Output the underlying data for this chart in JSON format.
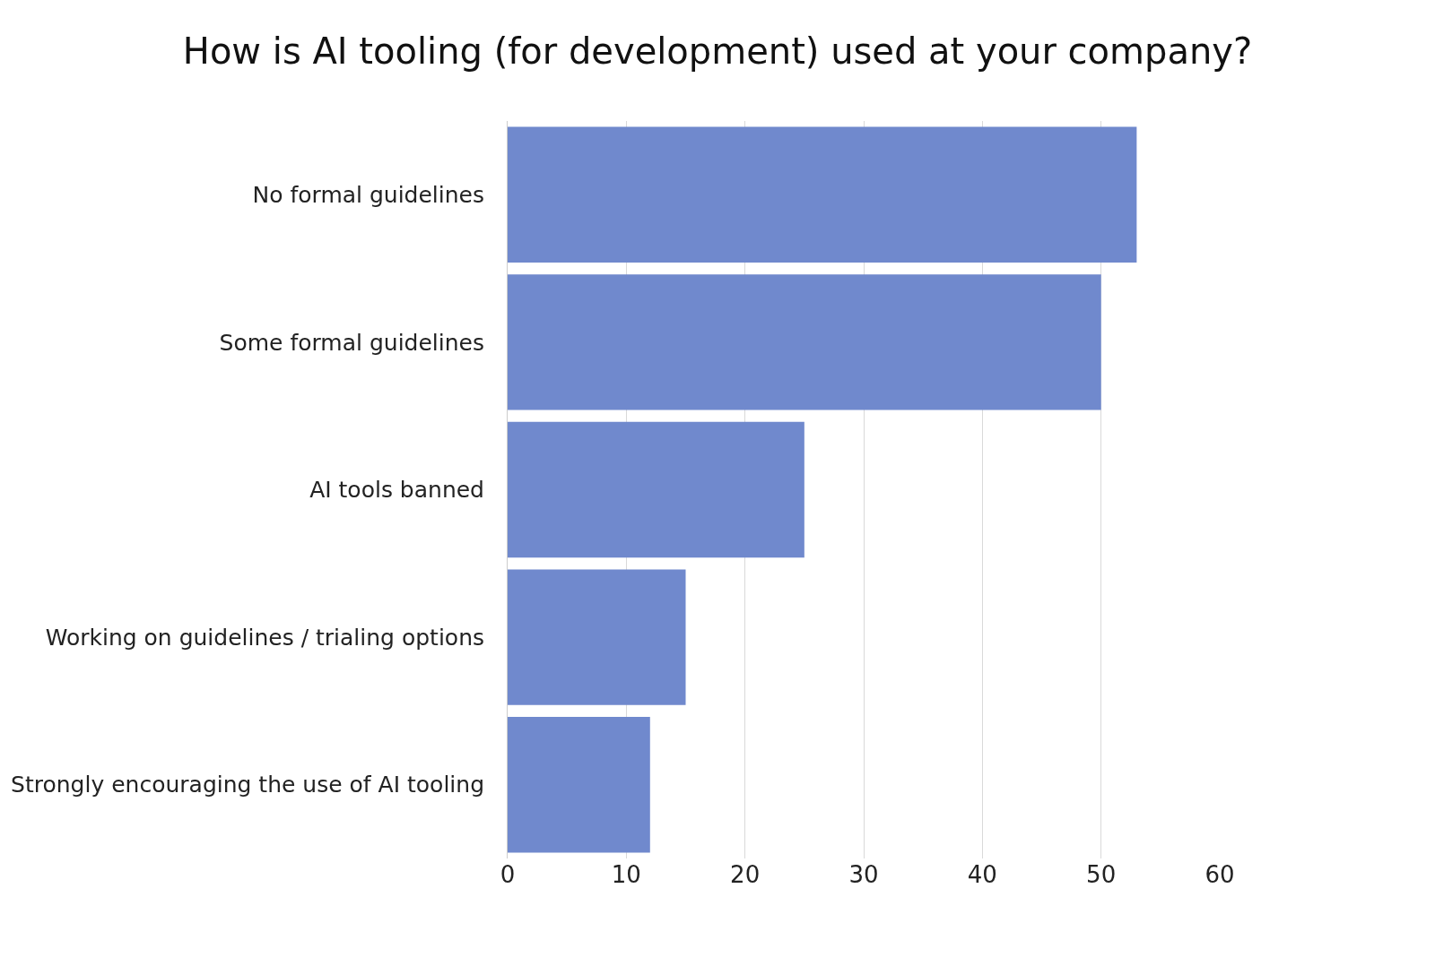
{
  "chart_data": {
    "type": "bar",
    "orientation": "horizontal",
    "title": "How is AI tooling (for development) used at your company?",
    "categories": [
      "No formal guidelines",
      "Some formal guidelines",
      "AI tools banned",
      "Working on guidelines / trialing options",
      "Strongly encouraging the use of AI tooling"
    ],
    "values": [
      53,
      50,
      25,
      15,
      12
    ],
    "color": "#7089cd",
    "xlim": [
      0,
      60
    ],
    "xticks": [
      0,
      10,
      20,
      30,
      40,
      50,
      60
    ],
    "grid": "x",
    "legend": false
  }
}
